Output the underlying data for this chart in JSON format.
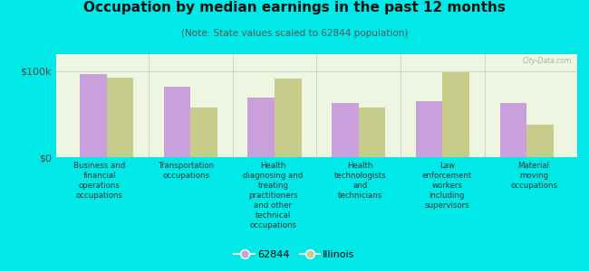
{
  "title": "Occupation by median earnings in the past 12 months",
  "subtitle": "(Note: State values scaled to 62844 population)",
  "categories": [
    "Business and\nfinancial\noperations\noccupations",
    "Transportation\noccupations",
    "Health\ndiagnosing and\ntreating\npractitioners\nand other\ntechnical\noccupations",
    "Health\ntechnologists\nand\ntechnicians",
    "Law\nenforcement\nworkers\nincluding\nsupervisors",
    "Material\nmoving\noccupations"
  ],
  "values_62844": [
    97000,
    82000,
    70000,
    63000,
    65000,
    63000
  ],
  "values_illinois": [
    93000,
    58000,
    92000,
    58000,
    99000,
    38000
  ],
  "color_62844": "#c9a0dc",
  "color_illinois": "#c8cc8a",
  "background_outer": "#00e8e8",
  "background_chart": "#eef5e0",
  "ylim": [
    0,
    120000
  ],
  "ytick_labels": [
    "$0",
    "$100k"
  ],
  "bar_width": 0.32,
  "watermark": "City-Data.com"
}
